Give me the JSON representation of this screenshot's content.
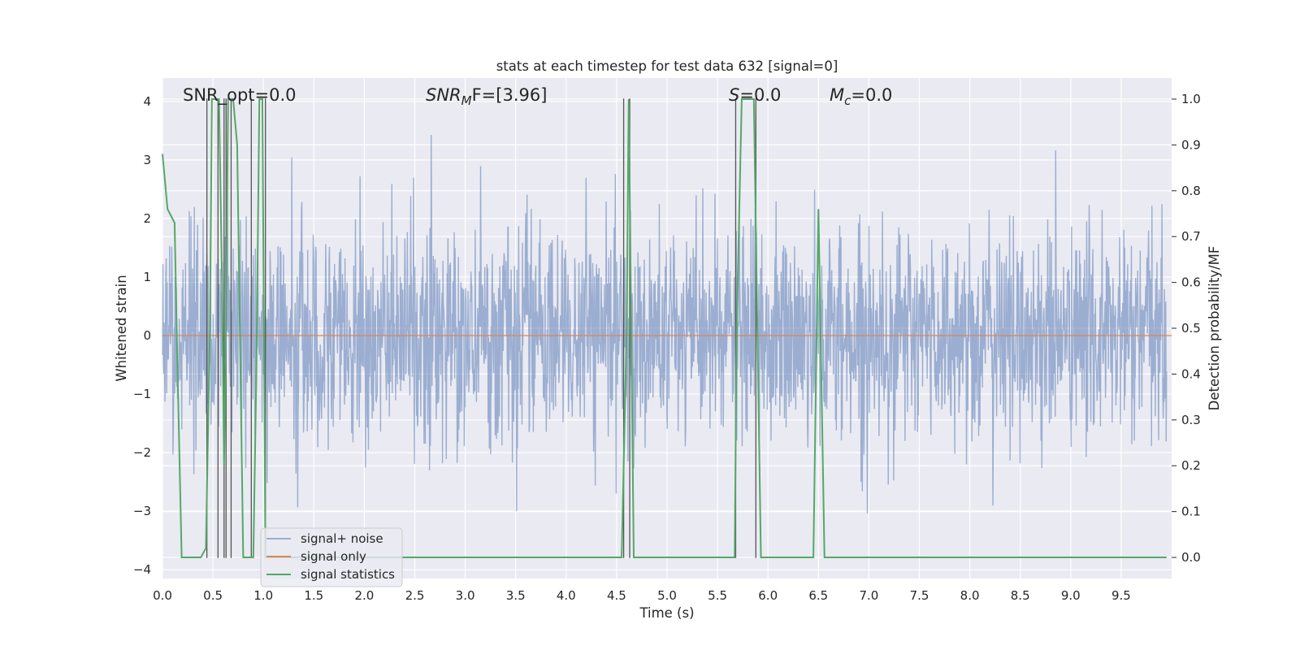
{
  "chart_data": {
    "type": "line",
    "title": "stats at each timestep for test data 632 [signal=0]",
    "xlabel": "Time (s)",
    "ylabel": "Whitened strain",
    "y2label": "Detection probability/MF",
    "xlim": [
      0.0,
      10.0
    ],
    "ylim": [
      -4.15,
      4.4
    ],
    "y2lim": [
      -0.046,
      1.046
    ],
    "x_ticks": [
      "0.0",
      "0.5",
      "1.0",
      "1.5",
      "2.0",
      "2.5",
      "3.0",
      "3.5",
      "4.0",
      "4.5",
      "5.0",
      "5.5",
      "6.0",
      "6.5",
      "7.0",
      "7.5",
      "8.0",
      "8.5",
      "9.0",
      "9.5"
    ],
    "y_ticks": [
      "4",
      "3",
      "2",
      "1",
      "0",
      "−1",
      "−2",
      "−3",
      "−4"
    ],
    "y2_ticks": [
      "1.0",
      "0.9",
      "0.8",
      "0.7",
      "0.6",
      "0.5",
      "0.4",
      "0.3",
      "0.2",
      "0.1",
      "0.0"
    ],
    "grid": true,
    "legend_position": "lower-left",
    "annotations": {
      "snr_opt": "SNR_opt=0.0",
      "snr_mf_main": "SNR",
      "snr_mf_sub": "M",
      "snr_mf_tail": "F=[3.96]",
      "s_main": "S",
      "s_tail": "=0.0",
      "mc_main": "M",
      "mc_sub": "c",
      "mc_tail": "=0.0"
    },
    "series": [
      {
        "name": "signal+ noise",
        "color": "#4c72b0",
        "opacity": 0.5,
        "description": "whitened strain noise, gaussian, std ≈0.9, peaks to about ±4"
      },
      {
        "name": "signal only",
        "color": "#dd8452",
        "x": [
          0.0,
          10.0
        ],
        "y": [
          0.0,
          0.0
        ]
      },
      {
        "name": "signal statistics",
        "color": "#55a868",
        "axis": "right",
        "x": [
          0.0,
          0.05,
          0.12,
          0.15,
          0.18,
          0.19,
          0.2,
          0.38,
          0.43,
          0.47,
          0.49,
          0.54,
          0.56,
          0.59,
          0.61,
          0.63,
          0.65,
          0.67,
          0.7,
          0.74,
          0.8,
          0.86,
          0.9,
          0.93,
          0.96,
          0.99,
          1.02,
          1.05,
          4.55,
          4.6,
          4.62,
          4.67,
          5.67,
          5.69,
          5.74,
          5.86,
          5.93,
          6.45,
          6.5,
          6.56,
          9.95
        ],
        "y": [
          0.88,
          0.76,
          0.73,
          0.4,
          0.1,
          0.0,
          0.0,
          0.0,
          0.02,
          0.5,
          1.0,
          1.0,
          1.0,
          0.6,
          0.2,
          0.5,
          1.0,
          1.0,
          1.0,
          0.9,
          0.0,
          0.0,
          0.0,
          0.4,
          1.0,
          1.0,
          0.0,
          0.0,
          0.0,
          0.5,
          1.0,
          0.0,
          0.0,
          0.5,
          1.0,
          1.0,
          0.0,
          0.0,
          0.76,
          0.0,
          0.0
        ]
      }
    ],
    "vlines": {
      "color": "#555555",
      "x": [
        0.44,
        0.55,
        0.61,
        0.63,
        0.68,
        0.88,
        1.02,
        4.57,
        4.63,
        5.68,
        5.88
      ],
      "ymin": [
        -3.8,
        -3.8,
        -3.8,
        -3.8,
        -3.8,
        -3.8,
        -3.8,
        -3.8,
        -3.8,
        -3.8,
        -3.8
      ],
      "ymax": [
        4.05,
        4.05,
        4.05,
        4.05,
        4.05,
        4.05,
        4.05,
        4.05,
        4.05,
        4.05,
        4.05
      ]
    }
  }
}
